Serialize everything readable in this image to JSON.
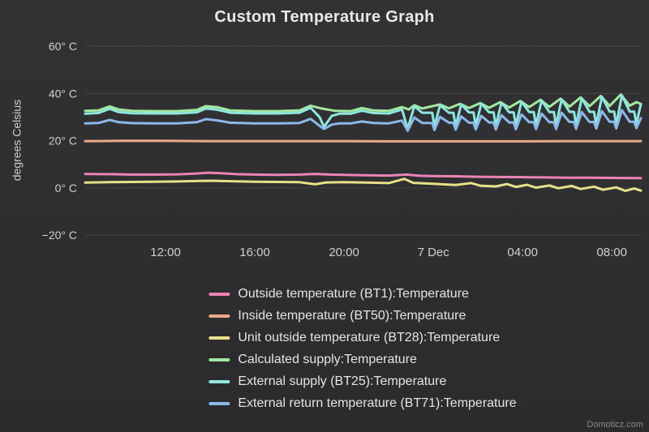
{
  "page": {
    "watermark": "Domoticz.com"
  },
  "colors": {
    "background_top": "#323234",
    "background_bottom": "#2b2b2d",
    "grid": "#47474a",
    "tick_text": "#d0d0d0",
    "title_text": "#e8e8e8",
    "legend_text": "#e4e4e4",
    "watermark_text": "#8a8a8a"
  },
  "chart_data": {
    "type": "line",
    "title": "Custom Temperature Graph",
    "xlabel": "",
    "ylabel": "degrees Celsius",
    "ylim": [
      -20,
      60
    ],
    "xlim": [
      8.4,
      33.3
    ],
    "x_encoding": "hours on timeline; 24 = midnight start of 7 Dec",
    "grid": true,
    "legend_position": "bottom",
    "yticks": [
      {
        "value": 60,
        "label": "60° C"
      },
      {
        "value": 40,
        "label": "40° C"
      },
      {
        "value": 20,
        "label": "20° C"
      },
      {
        "value": 0,
        "label": "0° C"
      },
      {
        "value": -20,
        "label": "−20° C"
      }
    ],
    "xticks": [
      {
        "value": 12,
        "label": "12:00"
      },
      {
        "value": 16,
        "label": "16:00"
      },
      {
        "value": 20,
        "label": "20:00"
      },
      {
        "value": 24,
        "label": "7 Dec"
      },
      {
        "value": 28,
        "label": "04:00"
      },
      {
        "value": 32,
        "label": "08:00"
      }
    ],
    "series": [
      {
        "name": "Outside temperature (BT1):Temperature",
        "color": "#ec83b7",
        "points": [
          [
            8.4,
            5.9
          ],
          [
            9.5,
            5.8
          ],
          [
            10.5,
            5.6
          ],
          [
            11.5,
            5.6
          ],
          [
            12.5,
            5.7
          ],
          [
            13.3,
            6.0
          ],
          [
            13.9,
            6.4
          ],
          [
            14.5,
            6.2
          ],
          [
            15.2,
            5.8
          ],
          [
            16.0,
            5.6
          ],
          [
            17.0,
            5.5
          ],
          [
            18.0,
            5.6
          ],
          [
            18.7,
            5.9
          ],
          [
            19.4,
            5.6
          ],
          [
            20.0,
            5.5
          ],
          [
            21.0,
            5.3
          ],
          [
            22.0,
            5.2
          ],
          [
            22.8,
            5.6
          ],
          [
            23.4,
            5.1
          ],
          [
            24.0,
            5.0
          ],
          [
            25.0,
            4.9
          ],
          [
            26.0,
            4.7
          ],
          [
            27.0,
            4.6
          ],
          [
            28.0,
            4.5
          ],
          [
            29.0,
            4.4
          ],
          [
            30.0,
            4.3
          ],
          [
            31.0,
            4.3
          ],
          [
            32.0,
            4.2
          ],
          [
            33.3,
            4.1
          ]
        ]
      },
      {
        "name": "Inside temperature (BT50):Temperature",
        "color": "#eba985",
        "points": [
          [
            8.4,
            19.8
          ],
          [
            10,
            19.9
          ],
          [
            12,
            19.9
          ],
          [
            14,
            19.8
          ],
          [
            16,
            19.8
          ],
          [
            18,
            19.8
          ],
          [
            20,
            19.8
          ],
          [
            22,
            19.7
          ],
          [
            24,
            19.7
          ],
          [
            26,
            19.7
          ],
          [
            28,
            19.7
          ],
          [
            30,
            19.8
          ],
          [
            32,
            19.8
          ],
          [
            33.3,
            19.8
          ]
        ]
      },
      {
        "name": "Unit outside temperature (BT28):Temperature",
        "color": "#e7e088",
        "points": [
          [
            8.4,
            2.2
          ],
          [
            9.5,
            2.4
          ],
          [
            10.5,
            2.5
          ],
          [
            11.5,
            2.6
          ],
          [
            12.5,
            2.7
          ],
          [
            13.5,
            2.9
          ],
          [
            14.0,
            3.0
          ],
          [
            15.0,
            2.8
          ],
          [
            16.0,
            2.6
          ],
          [
            17.0,
            2.5
          ],
          [
            18.0,
            2.4
          ],
          [
            18.7,
            1.5
          ],
          [
            19.2,
            2.3
          ],
          [
            20.0,
            2.4
          ],
          [
            21.0,
            2.2
          ],
          [
            22.0,
            2.0
          ],
          [
            22.7,
            3.8
          ],
          [
            23.1,
            2.1
          ],
          [
            24.0,
            1.7
          ],
          [
            25.0,
            1.2
          ],
          [
            25.7,
            2.0
          ],
          [
            26.1,
            0.9
          ],
          [
            26.8,
            0.6
          ],
          [
            27.3,
            1.6
          ],
          [
            27.7,
            0.4
          ],
          [
            28.2,
            1.3
          ],
          [
            28.6,
            0.1
          ],
          [
            29.2,
            1.0
          ],
          [
            29.6,
            -0.2
          ],
          [
            30.2,
            0.8
          ],
          [
            30.6,
            -0.5
          ],
          [
            31.2,
            0.5
          ],
          [
            31.6,
            -0.8
          ],
          [
            32.2,
            0.2
          ],
          [
            32.6,
            -1.3
          ],
          [
            33.0,
            -0.3
          ],
          [
            33.3,
            -1.2
          ]
        ]
      },
      {
        "name": "Calculated supply:Temperature",
        "color": "#a2e8a0",
        "points": [
          [
            8.4,
            32.6
          ],
          [
            9.0,
            32.8
          ],
          [
            9.5,
            34.5
          ],
          [
            9.9,
            33.2
          ],
          [
            10.5,
            32.6
          ],
          [
            11.5,
            32.5
          ],
          [
            12.5,
            32.5
          ],
          [
            13.4,
            33.0
          ],
          [
            13.8,
            34.6
          ],
          [
            14.3,
            34.2
          ],
          [
            14.9,
            32.8
          ],
          [
            16.0,
            32.5
          ],
          [
            17.0,
            32.5
          ],
          [
            18.0,
            32.8
          ],
          [
            18.5,
            34.8
          ],
          [
            19.0,
            33.6
          ],
          [
            19.6,
            32.6
          ],
          [
            20.3,
            32.5
          ],
          [
            20.8,
            33.8
          ],
          [
            21.3,
            32.8
          ],
          [
            22.0,
            32.6
          ],
          [
            22.6,
            34.2
          ],
          [
            22.9,
            33.2
          ],
          [
            23.15,
            35.0
          ],
          [
            23.5,
            33.6
          ],
          [
            24.3,
            35.3
          ],
          [
            24.7,
            33.7
          ],
          [
            25.2,
            35.6
          ],
          [
            25.6,
            33.8
          ],
          [
            26.1,
            35.9
          ],
          [
            26.5,
            33.9
          ],
          [
            27.0,
            36.3
          ],
          [
            27.4,
            34.0
          ],
          [
            27.9,
            36.8
          ],
          [
            28.3,
            34.2
          ],
          [
            28.8,
            37.3
          ],
          [
            29.2,
            34.3
          ],
          [
            29.7,
            37.8
          ],
          [
            30.1,
            34.4
          ],
          [
            30.6,
            38.3
          ],
          [
            31.0,
            34.6
          ],
          [
            31.5,
            38.9
          ],
          [
            31.9,
            34.7
          ],
          [
            32.4,
            39.5
          ],
          [
            32.8,
            34.8
          ],
          [
            33.1,
            36.3
          ],
          [
            33.3,
            35.5
          ]
        ]
      },
      {
        "name": "External supply (BT25):Temperature",
        "color": "#8fe6df",
        "points": [
          [
            8.4,
            31.4
          ],
          [
            9.0,
            31.7
          ],
          [
            9.5,
            33.5
          ],
          [
            9.9,
            32.1
          ],
          [
            10.5,
            31.6
          ],
          [
            11.5,
            31.5
          ],
          [
            12.5,
            31.5
          ],
          [
            13.4,
            32.0
          ],
          [
            13.8,
            33.6
          ],
          [
            14.3,
            33.1
          ],
          [
            14.9,
            31.8
          ],
          [
            16.0,
            31.5
          ],
          [
            17.0,
            31.5
          ],
          [
            18.0,
            31.8
          ],
          [
            18.5,
            33.9
          ],
          [
            18.9,
            30.0
          ],
          [
            19.1,
            25.8
          ],
          [
            19.45,
            30.5
          ],
          [
            19.8,
            31.4
          ],
          [
            20.3,
            31.4
          ],
          [
            20.8,
            32.7
          ],
          [
            21.3,
            31.7
          ],
          [
            22.0,
            31.5
          ],
          [
            22.6,
            33.2
          ],
          [
            22.85,
            25.0
          ],
          [
            23.15,
            34.6
          ],
          [
            23.5,
            31.8
          ],
          [
            23.95,
            31.8
          ],
          [
            24.05,
            26.0
          ],
          [
            24.3,
            35.0
          ],
          [
            24.7,
            31.8
          ],
          [
            24.9,
            31.8
          ],
          [
            25.0,
            26.1
          ],
          [
            25.25,
            35.3
          ],
          [
            25.6,
            31.9
          ],
          [
            25.8,
            31.9
          ],
          [
            25.9,
            26.2
          ],
          [
            26.15,
            35.7
          ],
          [
            26.5,
            32.0
          ],
          [
            26.7,
            32.0
          ],
          [
            26.8,
            26.3
          ],
          [
            27.05,
            36.1
          ],
          [
            27.4,
            32.0
          ],
          [
            27.6,
            32.0
          ],
          [
            27.7,
            26.4
          ],
          [
            27.95,
            36.5
          ],
          [
            28.3,
            32.1
          ],
          [
            28.5,
            32.1
          ],
          [
            28.6,
            26.5
          ],
          [
            28.85,
            37.0
          ],
          [
            29.2,
            32.1
          ],
          [
            29.4,
            32.1
          ],
          [
            29.5,
            26.6
          ],
          [
            29.75,
            37.5
          ],
          [
            30.1,
            32.2
          ],
          [
            30.3,
            32.2
          ],
          [
            30.4,
            26.7
          ],
          [
            30.65,
            38.0
          ],
          [
            31.0,
            32.2
          ],
          [
            31.2,
            32.2
          ],
          [
            31.3,
            26.8
          ],
          [
            31.55,
            38.6
          ],
          [
            31.9,
            32.3
          ],
          [
            32.1,
            32.3
          ],
          [
            32.2,
            26.9
          ],
          [
            32.45,
            39.2
          ],
          [
            32.8,
            32.3
          ],
          [
            33.0,
            32.3
          ],
          [
            33.1,
            27.2
          ],
          [
            33.3,
            35.5
          ]
        ]
      },
      {
        "name": "External return temperature (BT71):Temperature",
        "color": "#8cb9ea",
        "points": [
          [
            8.4,
            27.3
          ],
          [
            9.0,
            27.5
          ],
          [
            9.5,
            28.8
          ],
          [
            9.9,
            27.8
          ],
          [
            10.5,
            27.4
          ],
          [
            11.5,
            27.3
          ],
          [
            12.5,
            27.3
          ],
          [
            13.4,
            27.8
          ],
          [
            13.8,
            29.1
          ],
          [
            14.3,
            28.6
          ],
          [
            14.9,
            27.6
          ],
          [
            16.0,
            27.3
          ],
          [
            17.0,
            27.3
          ],
          [
            18.0,
            27.5
          ],
          [
            18.5,
            29.2
          ],
          [
            18.9,
            26.3
          ],
          [
            19.1,
            24.9
          ],
          [
            19.45,
            26.8
          ],
          [
            19.8,
            27.3
          ],
          [
            20.3,
            27.3
          ],
          [
            20.8,
            28.1
          ],
          [
            21.3,
            27.5
          ],
          [
            22.0,
            27.3
          ],
          [
            22.6,
            28.5
          ],
          [
            22.85,
            24.2
          ],
          [
            23.15,
            29.8
          ],
          [
            23.5,
            27.5
          ],
          [
            23.95,
            27.5
          ],
          [
            24.05,
            24.5
          ],
          [
            24.3,
            30.1
          ],
          [
            24.7,
            27.6
          ],
          [
            24.9,
            27.6
          ],
          [
            25.0,
            24.6
          ],
          [
            25.25,
            30.3
          ],
          [
            25.6,
            27.6
          ],
          [
            25.8,
            27.6
          ],
          [
            25.9,
            24.7
          ],
          [
            26.15,
            30.5
          ],
          [
            26.5,
            27.7
          ],
          [
            26.7,
            27.7
          ],
          [
            26.8,
            24.7
          ],
          [
            27.05,
            30.8
          ],
          [
            27.4,
            27.7
          ],
          [
            27.6,
            27.7
          ],
          [
            27.7,
            24.8
          ],
          [
            27.95,
            31.1
          ],
          [
            28.3,
            27.8
          ],
          [
            28.5,
            27.8
          ],
          [
            28.6,
            24.9
          ],
          [
            28.85,
            31.4
          ],
          [
            29.2,
            27.8
          ],
          [
            29.4,
            27.8
          ],
          [
            29.5,
            24.9
          ],
          [
            29.75,
            31.8
          ],
          [
            30.1,
            27.9
          ],
          [
            30.3,
            27.9
          ],
          [
            30.4,
            25.0
          ],
          [
            30.65,
            32.1
          ],
          [
            31.0,
            27.9
          ],
          [
            31.2,
            27.9
          ],
          [
            31.3,
            25.1
          ],
          [
            31.55,
            32.5
          ],
          [
            31.9,
            28.0
          ],
          [
            32.1,
            28.0
          ],
          [
            32.2,
            25.1
          ],
          [
            32.45,
            32.9
          ],
          [
            32.8,
            28.0
          ],
          [
            33.0,
            28.0
          ],
          [
            33.1,
            25.3
          ],
          [
            33.3,
            29.5
          ]
        ]
      }
    ]
  }
}
